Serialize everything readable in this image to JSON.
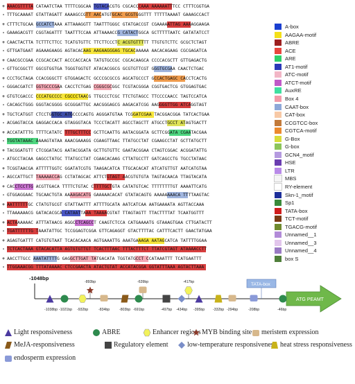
{
  "strand_signs": [
    "+",
    "-",
    "+",
    "-",
    "+",
    "-",
    "+",
    "-",
    "+",
    "-",
    "+",
    "-",
    "+",
    "-",
    "+",
    "-",
    "+",
    "-",
    "+",
    "-",
    "+",
    "-",
    "+",
    "-",
    "+",
    "-",
    "+",
    "-",
    "+",
    "-"
  ],
  "sequence_lines": [
    "AAACGTTTTA CATAATCTAA TTTTCGGCAA TGTACACGTG CGCACCCAAA AAAAAATTTCC CTTTCGGTGA",
    "TTTGCAAAAT GTATTAGATT AAAAGCCGTT AACATGTGCAC GCGTGGGTTT TTTTTAAAAT GAAAGCCACT",
    "CTTTCTGCAA GCCATCTAAA ATTAAAGGTT TAATTTGGGC GTATGACCGT CGAAAAATTAG AAAAGGAAGA",
    "GAAAGACGTT CGGTAGATTT TAATTTCCAA ATTAAAACCG CATACTGGCA GCTTTTTAATC GATATATCCT",
    "CAACTACTTA TCTTTCTTCC TCATGTGTTC TTCTTCCCTC ACGTGTTTTT TTGTGTCTTC GCGCTCTAGT",
    "GTTGATGAAT AGAAAGAAGG AGTACACAAG AAGAAGGGAG TGCACAAAAA AACACAGAAG CGCGAGATCA",
    "CAACGCCGAA CCGCACCACT ACCCACCACA TATGTGCCGC CGCACAAGCA CCCCACGCTT GTTGAGACTG",
    "GTTGCGGCTT GGCGTGGTGA TGGGTGGTGT ATACACGGCG GCGTGTTCGT GGGTGCGAA CAACTCTGAC",
    "CCCTGCTAGA CCACGGGCTT GTGGAGACTC GCCCGCGCCG AGCATGCCCT GCCACTGAGC CACCTCACTG",
    "GGGACGATCT GGTGCCCGAA CACCTCTGAG CGGGCGCGGC TCGTACGGGA CGGTGACTCG GTGGAGTGAC",
    "GTGTCGACCC CCCATGCCCC CGCCCTAACG TTGCCCTCGC TTCTGTAGCC TTCCCCAACC TAGTCCATCA",
    "CACAGCTGGG GGGTACGGGG GCGGGATTGC AACGGGAGCG AAGACATCGG AAGGGGTTGG ATCAGGTAGT",
    "TGCTCATGGT CTCCTGGTGC ATGCCCCAGTG AGGGATGTAA TCGGATCGAA TACGGACGGA TATCACTGAA",
    "ACGAGTACCA GAGGACCACA GTAGGGTACA TCCCTACATT AGCCTAGCTT ATGCCTGCCT ATAGTGACTT",
    "ACCATATTTG TTTTCATATC TTTGCTTTCC GCTTCAATTG AATACGGATA GCTTCGGATA CGAATACGAA",
    "TGGTATAAAC AAAAGTATAA AAACGAAAGG CGAAGTTAAC TTATGCCTAT CGAAGCCTAT GCTTATGCTT",
    "TACGGATGTT CTCGGATACG AATACGGATA GCTTGTGTTC GAATACGGAA CTAGTCGGAC ACGGATATTG",
    "ATGCCTACAA GAGCCTATGC TTATGCCTAT CGAACACAAG CTTATGCCTT GATCAGCCTG TGCCTATAAC",
    "TCGGTAACGA ATTTTTGGTC GGATATCGTG TAAGACATCA TTGCACACAT ATCATGTTGT AATCATGTAA",
    "AGCCATTGCT TAAAAACCAG CCTATAGCAC ATTCTGTAGT AACGTGTGTA TAGTACAACA TTAGTACATA",
    "CACCTCCTTG ACGTTGACA TTTTCTGTAC CTTTTGCTGTA CATATGTCAC TTTTTTTTGT AAAATTCATG",
    "GTGGAGGAAC TGCAACTGTA AAAAGACATG GAAAAACACAT GTATACAGTG AAAAAAAACA TTTTAAGTAC",
    "AATTTTTTGC CTATGTGCGT GTATTAATTT ATTTTGCATA AATCATCAA AATGAAAATA AGTTACCAAA",
    "TTAAAAAACG GATACACGCA CATAATTAAA TAAAACGTAT TTAGTAGTT TTACTTTTAT TCAATGGTTT",
    "ACTAAAAAAC ATTTATAACG AGGCCTCAGCCT CAAGTCTCCA CATGAAAATG GTAAAGTGAA CTTGATACTT",
    "TGATTTTTTG TAAATATTGC TCCGGAGTCGGA GTTCAGAGGT GTACTTTTAC CATTTCACTT GAACTATGAA",
    "AGAGTGATTT CATGTGTAAT TCACACAACA AGTGAAATTG AAATGAAAGA AATAGCATCA TATTTTGGAA",
    "TCTCACTAAA GTACACATTA AGTGTGTTGT TCACTTTAAC TTTACTTTCT TTATCGTAGT ATAAAACCTT",
    "AACCTTGCC AAATATTTTG GAGGCTTGAT TATGACATA TGGTATGCCT CCATAAATTT TCATGAATTT",
    "TTGGAAACGG TTTATAAAAC CTCCGAACTA ATACTGTAT ACCATACGGA GGTATTTAAA AGTACTTAAA"
  ],
  "legend": [
    {
      "label": "A-box",
      "color": "#1a3fd0"
    },
    {
      "label": "AAGAA-motif",
      "color": "#f4e019"
    },
    {
      "label": "ABRE",
      "color": "#9c1f1f"
    },
    {
      "label": "ACE",
      "color": "#e8463e"
    },
    {
      "label": "ARE",
      "color": "#2fd06a"
    },
    {
      "label": "AT1-motif",
      "color": "#2a38b8"
    },
    {
      "label": "ATC-motif",
      "color": "#f2b6c6"
    },
    {
      "label": "ATCT-motif",
      "color": "#c05ac8"
    },
    {
      "label": "AuxRE",
      "color": "#3fe0a0"
    },
    {
      "label": "Box 4",
      "color": "#f39aa8"
    },
    {
      "label": "CAAT-box",
      "color": "#8fa8d8"
    },
    {
      "label": "CAT-box",
      "color": "#f7c9a6"
    },
    {
      "label": "CCGTCC-box",
      "color": "#c27a3a"
    },
    {
      "label": "CGTCA-motif",
      "color": "#ec8a2e"
    },
    {
      "label": "G-Box",
      "color": "#d8dd3a"
    },
    {
      "label": "G-box",
      "color": "#8cc55a"
    },
    {
      "label": "GCN4_motif",
      "color": "#b59ae0"
    },
    {
      "label": "HSE",
      "color": "#6a3db0"
    },
    {
      "label": "LTR",
      "color": "#b98ae8"
    },
    {
      "label": "MBS",
      "color": "#f5f5f5"
    },
    {
      "label": "RY-element",
      "color": "#ffffff"
    },
    {
      "label": "Skn-1_motif",
      "color": "#1d2f9a"
    },
    {
      "label": "Sp1",
      "color": "#3a8a3a"
    },
    {
      "label": "TATA-box",
      "color": "#d01c1c"
    },
    {
      "label": "TCT-motif",
      "color": "#7a3a14"
    },
    {
      "label": "TGACG-motif",
      "color": "#6f8a2e"
    },
    {
      "label": "Unnamed__1",
      "color": "#b28bd8"
    },
    {
      "label": "Unnamed__3",
      "color": "#e2c6ec"
    },
    {
      "label": "Unnamed__4",
      "color": "#9a7ac4"
    },
    {
      "label": "box S",
      "color": "#4f7f3a"
    }
  ],
  "map": {
    "start_label": "-1048bp",
    "tata_label": "TATA-box",
    "gene_label": "ATG PEAMT",
    "above_labels": [
      "-893bp",
      "-639bp",
      "-417bp"
    ],
    "below_labels": [
      "-1038bp",
      "-1021bp",
      "-932bp",
      "-834bp",
      "-803bp",
      "-691bp",
      "-497bp",
      "-434bp",
      "-395bp",
      "-332bp",
      "-294bp",
      "-208bp",
      "-46bp"
    ]
  },
  "key": [
    {
      "label": "Light responsiveness",
      "icon": "triangle-icon",
      "color": "#4b3aa0"
    },
    {
      "label": "ABRE",
      "icon": "circle-icon",
      "color": "#2e8a4e"
    },
    {
      "label": "Enhancer regions",
      "icon": "hexagon-icon",
      "color": "#f2f25a"
    },
    {
      "label": "MYB binding site",
      "icon": "star-icon",
      "color": "#8a3a2a"
    },
    {
      "label": "meristem expression",
      "icon": "rounded-square-icon",
      "color": "#d7b88c"
    },
    {
      "label": "MeJA-responsiveness",
      "icon": "parallelogram-icon",
      "color": "#8a5a1a"
    },
    {
      "label": "Regulatory element",
      "icon": "square-icon",
      "color": "#444444"
    },
    {
      "label": "low-temperature responsiveness",
      "icon": "diamond-icon",
      "color": "#7a8ec8"
    },
    {
      "label": "heat stress responsiveness",
      "icon": "trapezoid-icon",
      "color": "#c8b21a"
    },
    {
      "label": "endosperm expression",
      "icon": "rounded-rect-icon",
      "color": "#8a9ad8"
    }
  ]
}
